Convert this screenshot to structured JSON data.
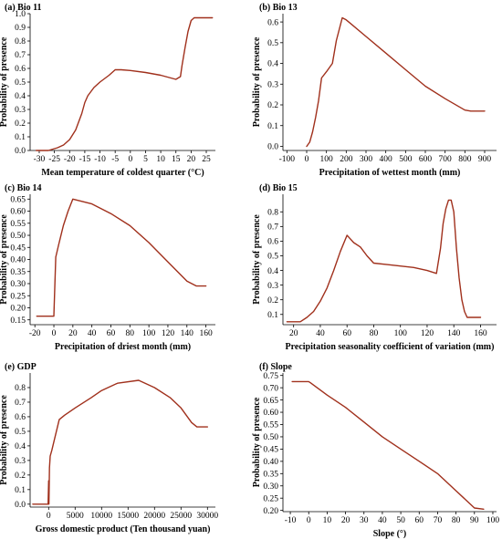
{
  "colors": {
    "line": "#a0301c",
    "axis": "#000000"
  },
  "chart_data": [
    {
      "type": "line",
      "panel": "(a)",
      "title": "Bio 11",
      "xlabel": "Mean temperature of coldest quarter (°C)",
      "ylabel": "Probability of presence",
      "xlim": [
        -33,
        28
      ],
      "ylim": [
        0,
        1.0
      ],
      "xticks": [
        -30,
        -25,
        -20,
        -15,
        -10,
        -5,
        0,
        5,
        10,
        15,
        20,
        25
      ],
      "xticklabels": [
        "-30",
        "-25",
        "-20",
        "-15",
        "-10",
        "-5",
        "0",
        "5",
        "10",
        "15",
        "20",
        "25"
      ],
      "yticks": [
        0,
        0.1,
        0.2,
        0.3,
        0.4,
        0.5,
        0.6,
        0.7,
        0.8,
        0.9,
        1.0
      ],
      "yticklabels": [
        "0.0",
        "0.1",
        "0.2",
        "0.3",
        "0.4",
        "0.5",
        "0.6",
        "0.7",
        "0.8",
        "0.9",
        "1.0"
      ],
      "x": [
        -31,
        -27,
        -24,
        -22,
        -20,
        -18,
        -16,
        -15,
        -14,
        -12,
        -10,
        -7,
        -5,
        -3,
        0,
        5,
        10,
        15,
        16.5,
        17,
        18,
        19,
        20,
        21,
        22,
        25,
        27
      ],
      "y": [
        0.0,
        0.0,
        0.02,
        0.04,
        0.08,
        0.15,
        0.27,
        0.35,
        0.4,
        0.46,
        0.5,
        0.55,
        0.59,
        0.59,
        0.585,
        0.57,
        0.55,
        0.52,
        0.54,
        0.62,
        0.75,
        0.87,
        0.95,
        0.97,
        0.97,
        0.97,
        0.97
      ]
    },
    {
      "type": "line",
      "panel": "(b)",
      "title": "Bio 13",
      "xlabel": "Precipitation of wettest month (mm)",
      "ylabel": "Probability of presence",
      "xlim": [
        -120,
        960
      ],
      "ylim": [
        -0.02,
        0.64
      ],
      "xticks": [
        -100,
        0,
        100,
        200,
        300,
        400,
        500,
        600,
        700,
        800,
        900
      ],
      "xticklabels": [
        "-100",
        "0",
        "100",
        "200",
        "300",
        "400",
        "500",
        "600",
        "700",
        "800",
        "900"
      ],
      "yticks": [
        0,
        0.1,
        0.2,
        0.3,
        0.4,
        0.5,
        0.6
      ],
      "yticklabels": [
        "0.0",
        "0.1",
        "0.2",
        "0.3",
        "0.4",
        "0.5",
        "0.6"
      ],
      "x": [
        0,
        15,
        30,
        45,
        60,
        75,
        100,
        130,
        150,
        180,
        200,
        300,
        400,
        500,
        600,
        700,
        800,
        830,
        900
      ],
      "y": [
        0.0,
        0.02,
        0.07,
        0.14,
        0.22,
        0.33,
        0.36,
        0.4,
        0.51,
        0.62,
        0.61,
        0.53,
        0.45,
        0.37,
        0.29,
        0.23,
        0.175,
        0.17,
        0.17
      ]
    },
    {
      "type": "line",
      "panel": "(c)",
      "title": "Bio 14",
      "xlabel": "Precipitation of driest month (mm)",
      "ylabel": "Probability of presence",
      "xlim": [
        -25,
        170
      ],
      "ylim": [
        0.13,
        0.67
      ],
      "xticks": [
        -20,
        0,
        20,
        40,
        60,
        80,
        100,
        120,
        140,
        160
      ],
      "xticklabels": [
        "-20",
        "0",
        "20",
        "40",
        "60",
        "80",
        "100",
        "120",
        "140",
        "160"
      ],
      "yticks": [
        0.15,
        0.2,
        0.25,
        0.3,
        0.35,
        0.4,
        0.45,
        0.5,
        0.55,
        0.6,
        0.65
      ],
      "yticklabels": [
        "0.15",
        "0.20",
        "0.25",
        "0.30",
        "0.35",
        "0.40",
        "0.45",
        "0.50",
        "0.55",
        "0.60",
        "0.65"
      ],
      "x": [
        -18,
        -5,
        0,
        2,
        5,
        10,
        15,
        20,
        30,
        40,
        60,
        80,
        100,
        120,
        140,
        150,
        160
      ],
      "y": [
        0.165,
        0.165,
        0.165,
        0.41,
        0.46,
        0.54,
        0.6,
        0.65,
        0.64,
        0.63,
        0.59,
        0.54,
        0.47,
        0.39,
        0.31,
        0.29,
        0.29
      ]
    },
    {
      "type": "line",
      "panel": "(d)",
      "title": "Bio 15",
      "xlabel": "Precipitation seasonality coefficient of variation (mm)",
      "ylabel": "Probability of presence",
      "xlim": [
        12,
        172
      ],
      "ylim": [
        0.03,
        0.92
      ],
      "xticks": [
        20,
        40,
        60,
        80,
        100,
        120,
        140,
        160
      ],
      "xticklabels": [
        "20",
        "40",
        "60",
        "80",
        "100",
        "120",
        "140",
        "160"
      ],
      "yticks": [
        0.1,
        0.2,
        0.3,
        0.4,
        0.5,
        0.6,
        0.7,
        0.8
      ],
      "yticklabels": [
        "0.1",
        "0.2",
        "0.3",
        "0.4",
        "0.5",
        "0.6",
        "0.7",
        "0.8"
      ],
      "x": [
        15,
        25,
        30,
        35,
        40,
        45,
        50,
        55,
        60,
        65,
        70,
        75,
        80,
        90,
        100,
        110,
        120,
        127,
        130,
        132,
        134,
        136,
        138,
        140,
        142,
        144,
        146,
        148,
        150,
        155,
        160
      ],
      "y": [
        0.05,
        0.05,
        0.08,
        0.12,
        0.19,
        0.28,
        0.4,
        0.53,
        0.64,
        0.59,
        0.56,
        0.5,
        0.45,
        0.44,
        0.43,
        0.42,
        0.4,
        0.38,
        0.55,
        0.72,
        0.82,
        0.88,
        0.88,
        0.8,
        0.55,
        0.35,
        0.2,
        0.12,
        0.08,
        0.08,
        0.08
      ]
    },
    {
      "type": "line",
      "panel": "(e)",
      "title": "GDP",
      "xlabel": "Gross domestic product (Ten thousand yuan)",
      "ylabel": "Probability of presence",
      "xlim": [
        -3500,
        31500
      ],
      "ylim": [
        -0.02,
        0.9
      ],
      "xticks": [
        0,
        5000,
        10000,
        15000,
        20000,
        25000,
        30000
      ],
      "xticklabels": [
        "0",
        "5000",
        "10000",
        "15000",
        "20000",
        "25000",
        "30000"
      ],
      "yticks": [
        0,
        0.1,
        0.2,
        0.3,
        0.4,
        0.5,
        0.6,
        0.7,
        0.8
      ],
      "yticklabels": [
        "0.0",
        "0.1",
        "0.2",
        "0.3",
        "0.4",
        "0.5",
        "0.6",
        "0.7",
        "0.8"
      ],
      "x": [
        -3000,
        -1000,
        -100,
        0,
        50,
        150,
        300,
        600,
        1000,
        2000,
        3000,
        5000,
        8000,
        10000,
        13000,
        17000,
        20000,
        23000,
        25000,
        27000,
        28000,
        30000
      ],
      "y": [
        0.0,
        0.0,
        0.0,
        0.16,
        0.0,
        0.25,
        0.33,
        0.37,
        0.43,
        0.58,
        0.61,
        0.66,
        0.73,
        0.78,
        0.83,
        0.85,
        0.8,
        0.73,
        0.66,
        0.56,
        0.53,
        0.53
      ]
    },
    {
      "type": "line",
      "panel": "(f)",
      "title": "Slope",
      "xlabel": "Slope (°)",
      "ylabel": "Probability of presence",
      "xlim": [
        -14,
        102
      ],
      "ylim": [
        0.195,
        0.76
      ],
      "xticks": [
        -10,
        0,
        10,
        20,
        30,
        40,
        50,
        60,
        70,
        80,
        90,
        100
      ],
      "xticklabels": [
        "-10",
        "0",
        "10",
        "20",
        "30",
        "40",
        "50",
        "60",
        "70",
        "80",
        "90",
        "100"
      ],
      "yticks": [
        0.2,
        0.25,
        0.3,
        0.35,
        0.4,
        0.45,
        0.5,
        0.55,
        0.6,
        0.65,
        0.7,
        0.75
      ],
      "yticklabels": [
        "0.20",
        "0.25",
        "0.30",
        "0.35",
        "0.40",
        "0.45",
        "0.50",
        "0.55",
        "0.60",
        "0.65",
        "0.70",
        "0.75"
      ],
      "x": [
        -9,
        0,
        1,
        10,
        20,
        30,
        40,
        50,
        60,
        70,
        80,
        90,
        95
      ],
      "y": [
        0.725,
        0.725,
        0.72,
        0.67,
        0.62,
        0.56,
        0.5,
        0.45,
        0.4,
        0.35,
        0.28,
        0.21,
        0.205
      ]
    }
  ]
}
